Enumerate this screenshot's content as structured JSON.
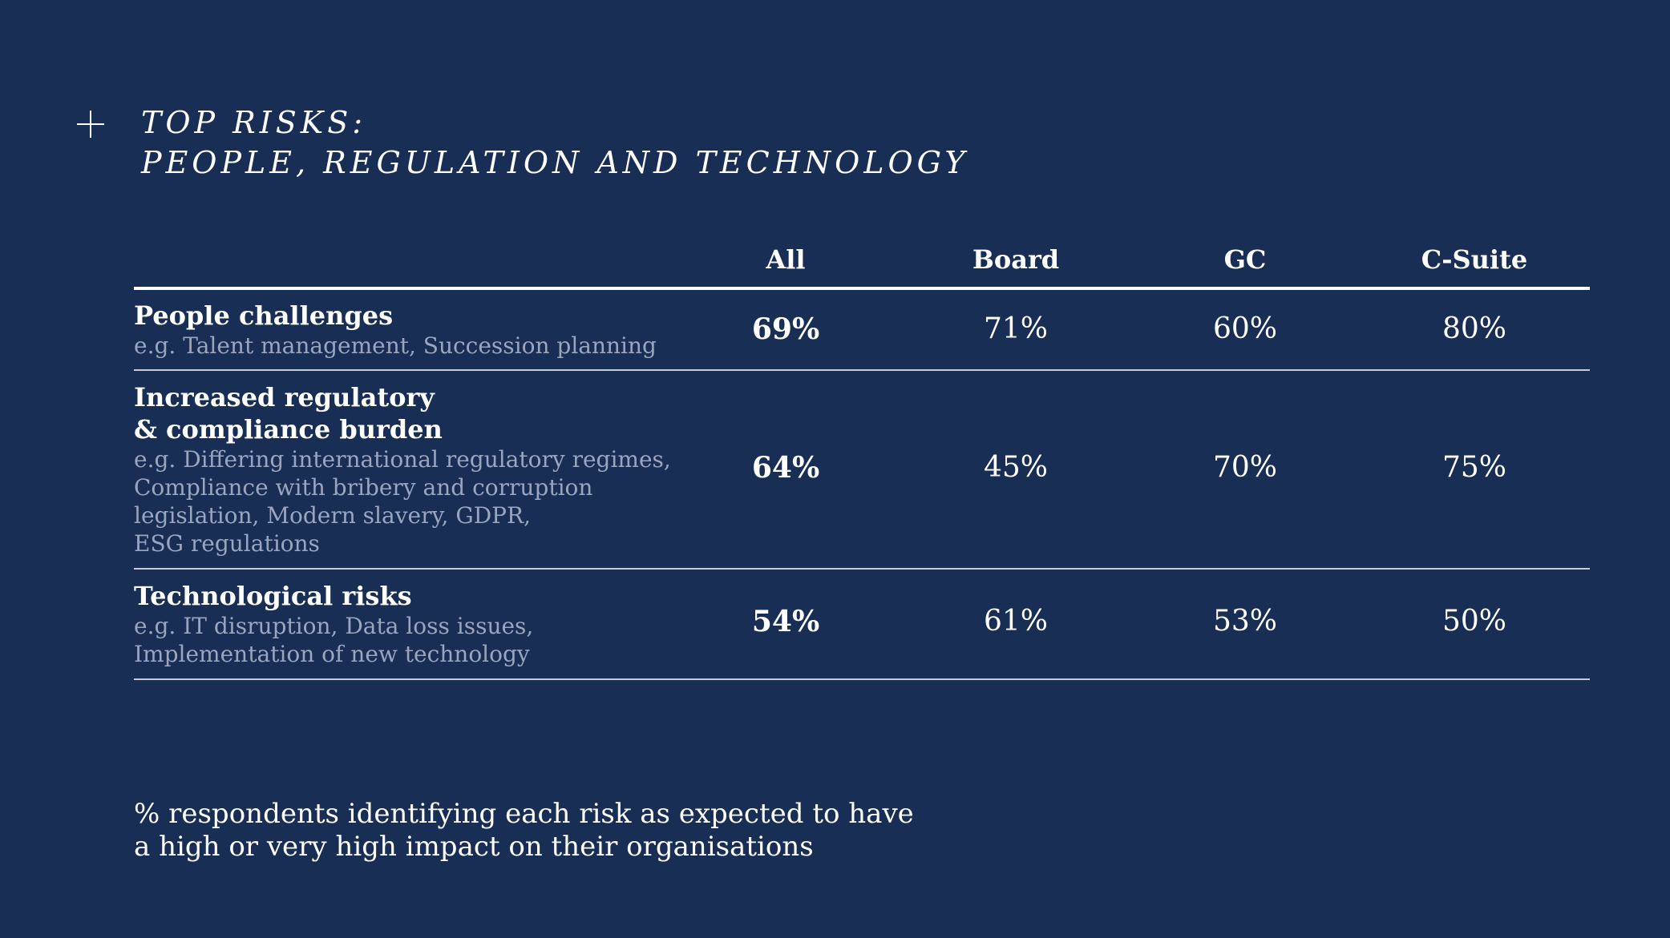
{
  "title": {
    "line1": "TOP RISKS:",
    "line2": "PEOPLE, REGULATION AND TECHNOLOGY"
  },
  "table": {
    "columns": [
      "All",
      "Board",
      "GC",
      "C-Suite"
    ],
    "rows": [
      {
        "title_lines": [
          "People challenges"
        ],
        "sub_lines": [
          "e.g. Talent management, Succession planning"
        ],
        "values": [
          "69%",
          "71%",
          "60%",
          "80%"
        ]
      },
      {
        "title_lines": [
          "Increased regulatory",
          "& compliance burden"
        ],
        "sub_lines": [
          "e.g. Differing international regulatory regimes,",
          "Compliance with bribery and corruption",
          "legislation, Modern slavery, GDPR,",
          "ESG regulations"
        ],
        "values": [
          "64%",
          "45%",
          "70%",
          "75%"
        ]
      },
      {
        "title_lines": [
          "Technological risks"
        ],
        "sub_lines": [
          "e.g. IT disruption, Data loss issues,",
          "Implementation of new technology"
        ],
        "values": [
          "54%",
          "61%",
          "53%",
          "50%"
        ]
      }
    ]
  },
  "footnote": {
    "line1": "% respondents identifying each risk as expected to have",
    "line2": "a high or very high impact on their organisations"
  },
  "colors": {
    "background": "#182e54",
    "text": "#ffffff",
    "subtext": "#9aa6bf"
  }
}
